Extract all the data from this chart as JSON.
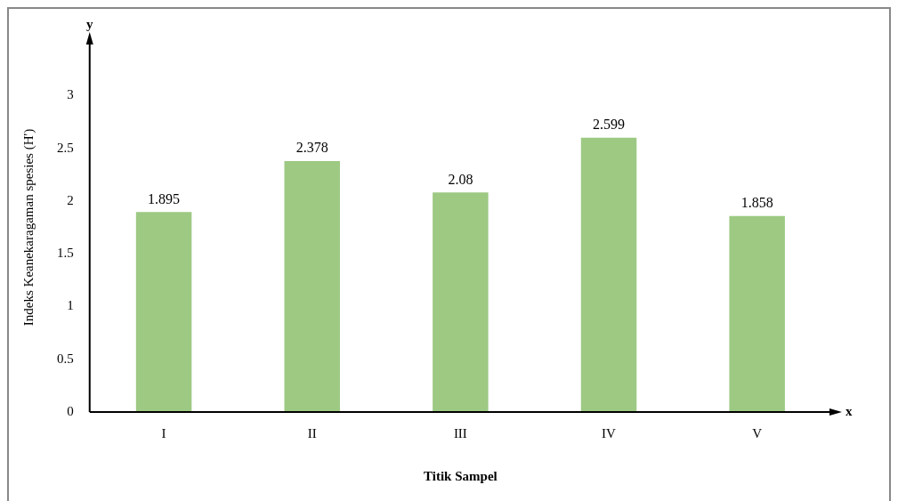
{
  "chart_data": {
    "type": "bar",
    "xlabel": "Titik Sampel",
    "ylabel": "Indeks Keanekaragaman spesies (H')",
    "categories": [
      "I",
      "II",
      "III",
      "IV",
      "V"
    ],
    "values": [
      1.895,
      2.378,
      2.08,
      2.599,
      1.858
    ],
    "color": "#9dc983",
    "ylim": [
      0,
      3.5
    ],
    "yticks": [
      0,
      0.5,
      1,
      1.5,
      2,
      2.5,
      3
    ],
    "grid": false,
    "legend": false,
    "data_labels": true,
    "annotations": [
      "y",
      "x"
    ]
  }
}
